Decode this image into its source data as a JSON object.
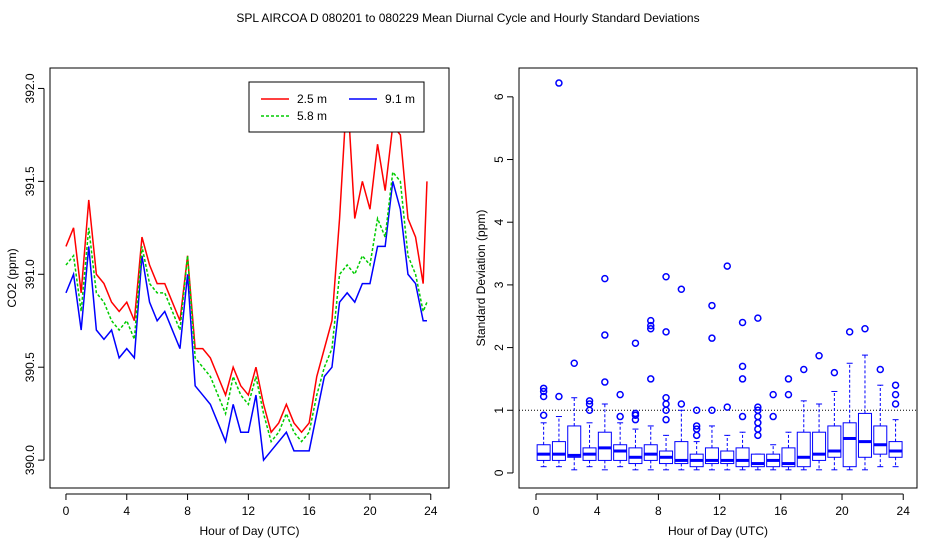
{
  "title": "SPL   AIRCOA D   080201 to 080229   Mean Diurnal Cycle and Hourly Standard Deviations",
  "chart_data": [
    {
      "type": "line",
      "xlabel": "Hour of Day (UTC)",
      "ylabel": "CO2 (ppm)",
      "x": [
        0,
        0.5,
        1,
        1.5,
        2,
        2.5,
        3,
        3.5,
        4,
        4.5,
        5,
        5.5,
        6,
        6.5,
        7,
        7.5,
        8,
        8.5,
        9,
        9.5,
        10,
        10.5,
        11,
        11.5,
        12,
        12.5,
        13,
        13.5,
        14,
        14.5,
        15,
        15.5,
        16,
        16.5,
        17,
        17.5,
        18,
        18.5,
        19,
        19.5,
        20,
        20.5,
        21,
        21.5,
        22,
        22.5,
        23,
        23.5,
        23.75
      ],
      "series": [
        {
          "name": "2.5 m",
          "color": "#ff0000",
          "linestyle": "solid",
          "values": [
            391.15,
            391.25,
            390.9,
            391.4,
            391.0,
            390.95,
            390.85,
            390.8,
            390.85,
            390.75,
            391.2,
            391.05,
            390.95,
            390.95,
            390.85,
            390.75,
            391.1,
            390.6,
            390.6,
            390.55,
            390.45,
            390.35,
            390.5,
            390.4,
            390.35,
            390.5,
            390.3,
            390.15,
            390.2,
            390.3,
            390.2,
            390.15,
            390.2,
            390.45,
            390.6,
            390.75,
            391.3,
            392.0,
            391.3,
            391.5,
            391.35,
            391.7,
            391.45,
            391.8,
            391.75,
            391.3,
            391.2,
            390.95,
            391.5
          ]
        },
        {
          "name": "9.1 m",
          "color": "#0000ff",
          "linestyle": "solid",
          "values": [
            390.9,
            391.0,
            390.7,
            391.15,
            390.7,
            390.65,
            390.7,
            390.55,
            390.6,
            390.55,
            391.1,
            390.85,
            390.75,
            390.8,
            390.7,
            390.6,
            391.0,
            390.4,
            390.35,
            390.3,
            390.2,
            390.1,
            390.3,
            390.15,
            390.15,
            390.35,
            390.0,
            390.05,
            390.1,
            390.15,
            390.05,
            390.05,
            390.05,
            390.25,
            390.45,
            390.5,
            390.85,
            390.9,
            390.85,
            390.95,
            390.95,
            391.15,
            391.15,
            391.5,
            391.35,
            391.0,
            390.95,
            390.75,
            390.75
          ]
        },
        {
          "name": "5.8 m",
          "color": "#00cc00",
          "linestyle": "dashed",
          "values": [
            391.05,
            391.1,
            390.8,
            391.25,
            390.9,
            390.85,
            390.75,
            390.7,
            390.75,
            390.65,
            391.15,
            390.95,
            390.9,
            390.9,
            390.8,
            390.7,
            391.1,
            390.55,
            390.5,
            390.45,
            390.35,
            390.25,
            390.45,
            390.35,
            390.3,
            390.45,
            390.25,
            390.1,
            390.15,
            390.25,
            390.15,
            390.1,
            390.15,
            390.35,
            390.5,
            390.6,
            391.0,
            391.05,
            391.0,
            391.1,
            391.05,
            391.3,
            391.2,
            391.55,
            391.5,
            391.1,
            391.0,
            390.8,
            390.85
          ]
        }
      ],
      "xlim": [
        -1.05,
        25.2
      ],
      "xticks": [
        0,
        4,
        8,
        12,
        16,
        20,
        24
      ],
      "ylim": [
        389.85,
        392.11
      ],
      "yticks": [
        {
          "value": 390.0,
          "label": "390.0"
        },
        390.5,
        {
          "value": 391.0,
          "label": "391.0"
        },
        391.5,
        {
          "value": 392.0,
          "label": "392.0"
        }
      ],
      "legend": "top-right"
    },
    {
      "type": "box",
      "xlabel": "Hour of Day (UTC)",
      "ylabel": "Standard Deviation (ppm)",
      "color": "#0000ff",
      "x": [
        0.5,
        1.5,
        2.5,
        3.5,
        4.5,
        5.5,
        6.5,
        7.5,
        8.5,
        9.5,
        10.5,
        11.5,
        12.5,
        13.5,
        14.5,
        15.5,
        16.5,
        17.5,
        18.5,
        19.5,
        20.5,
        21.5,
        22.5,
        23.5
      ],
      "low": [
        0.1,
        0.1,
        0.05,
        0.1,
        0.05,
        0.1,
        0.05,
        0.05,
        0.05,
        0.05,
        0.05,
        0.05,
        0.05,
        0.05,
        0.05,
        0.05,
        0.05,
        0.05,
        0.05,
        0.05,
        0.05,
        0.05,
        0.1,
        0.1
      ],
      "q1": [
        0.2,
        0.2,
        0.25,
        0.2,
        0.2,
        0.2,
        0.15,
        0.2,
        0.15,
        0.15,
        0.1,
        0.15,
        0.15,
        0.1,
        0.1,
        0.1,
        0.1,
        0.1,
        0.2,
        0.25,
        0.1,
        0.25,
        0.3,
        0.25
      ],
      "median": [
        0.3,
        0.3,
        0.28,
        0.3,
        0.4,
        0.35,
        0.25,
        0.3,
        0.25,
        0.2,
        0.2,
        0.2,
        0.2,
        0.2,
        0.15,
        0.2,
        0.15,
        0.25,
        0.3,
        0.35,
        0.55,
        0.5,
        0.45,
        0.35
      ],
      "q3": [
        0.45,
        0.5,
        0.75,
        0.4,
        0.65,
        0.45,
        0.4,
        0.45,
        0.35,
        0.5,
        0.3,
        0.4,
        0.35,
        0.4,
        0.3,
        0.3,
        0.4,
        0.65,
        0.65,
        0.75,
        0.8,
        0.95,
        0.75,
        0.5
      ],
      "high": [
        0.8,
        0.9,
        1.2,
        0.8,
        1.1,
        0.8,
        0.7,
        0.75,
        0.6,
        1.0,
        0.5,
        0.75,
        0.6,
        0.65,
        0.3,
        0.45,
        0.65,
        1.15,
        1.1,
        1.3,
        1.75,
        1.88,
        1.4,
        0.85
      ],
      "outliers": [
        [
          0.92,
          1.22,
          1.3,
          1.35
        ],
        [
          1.22,
          6.22
        ],
        [
          1.75
        ],
        [
          1.0,
          1.1,
          1.15
        ],
        [
          1.45,
          2.2,
          3.1
        ],
        [
          0.9,
          1.25
        ],
        [
          0.85,
          0.92,
          0.95,
          2.07
        ],
        [
          1.5,
          2.3,
          2.35,
          2.43
        ],
        [
          0.85,
          1.0,
          1.1,
          1.2,
          2.25,
          3.13
        ],
        [
          1.1,
          2.93
        ],
        [
          0.6,
          0.7,
          0.75,
          1.0
        ],
        [
          1.0,
          2.15,
          2.67
        ],
        [
          1.05,
          3.3
        ],
        [
          0.9,
          1.5,
          1.7,
          2.4
        ],
        [
          0.6,
          0.7,
          0.8,
          0.9,
          1.0,
          1.05,
          2.47
        ],
        [
          0.9,
          1.25
        ],
        [
          1.25,
          1.5
        ],
        [
          1.65
        ],
        [
          1.87
        ],
        [
          1.6
        ],
        [
          2.25
        ],
        [
          2.3
        ],
        [
          1.65
        ],
        [
          1.1,
          1.25,
          1.4
        ]
      ],
      "hline": 1,
      "xlim": [
        -1.11,
        24.9
      ],
      "xticks": [
        0,
        4,
        8,
        12,
        16,
        20,
        24
      ],
      "ylim": [
        -0.24,
        6.46
      ],
      "yticks": [
        0,
        1,
        2,
        3,
        4,
        5,
        6
      ]
    }
  ]
}
